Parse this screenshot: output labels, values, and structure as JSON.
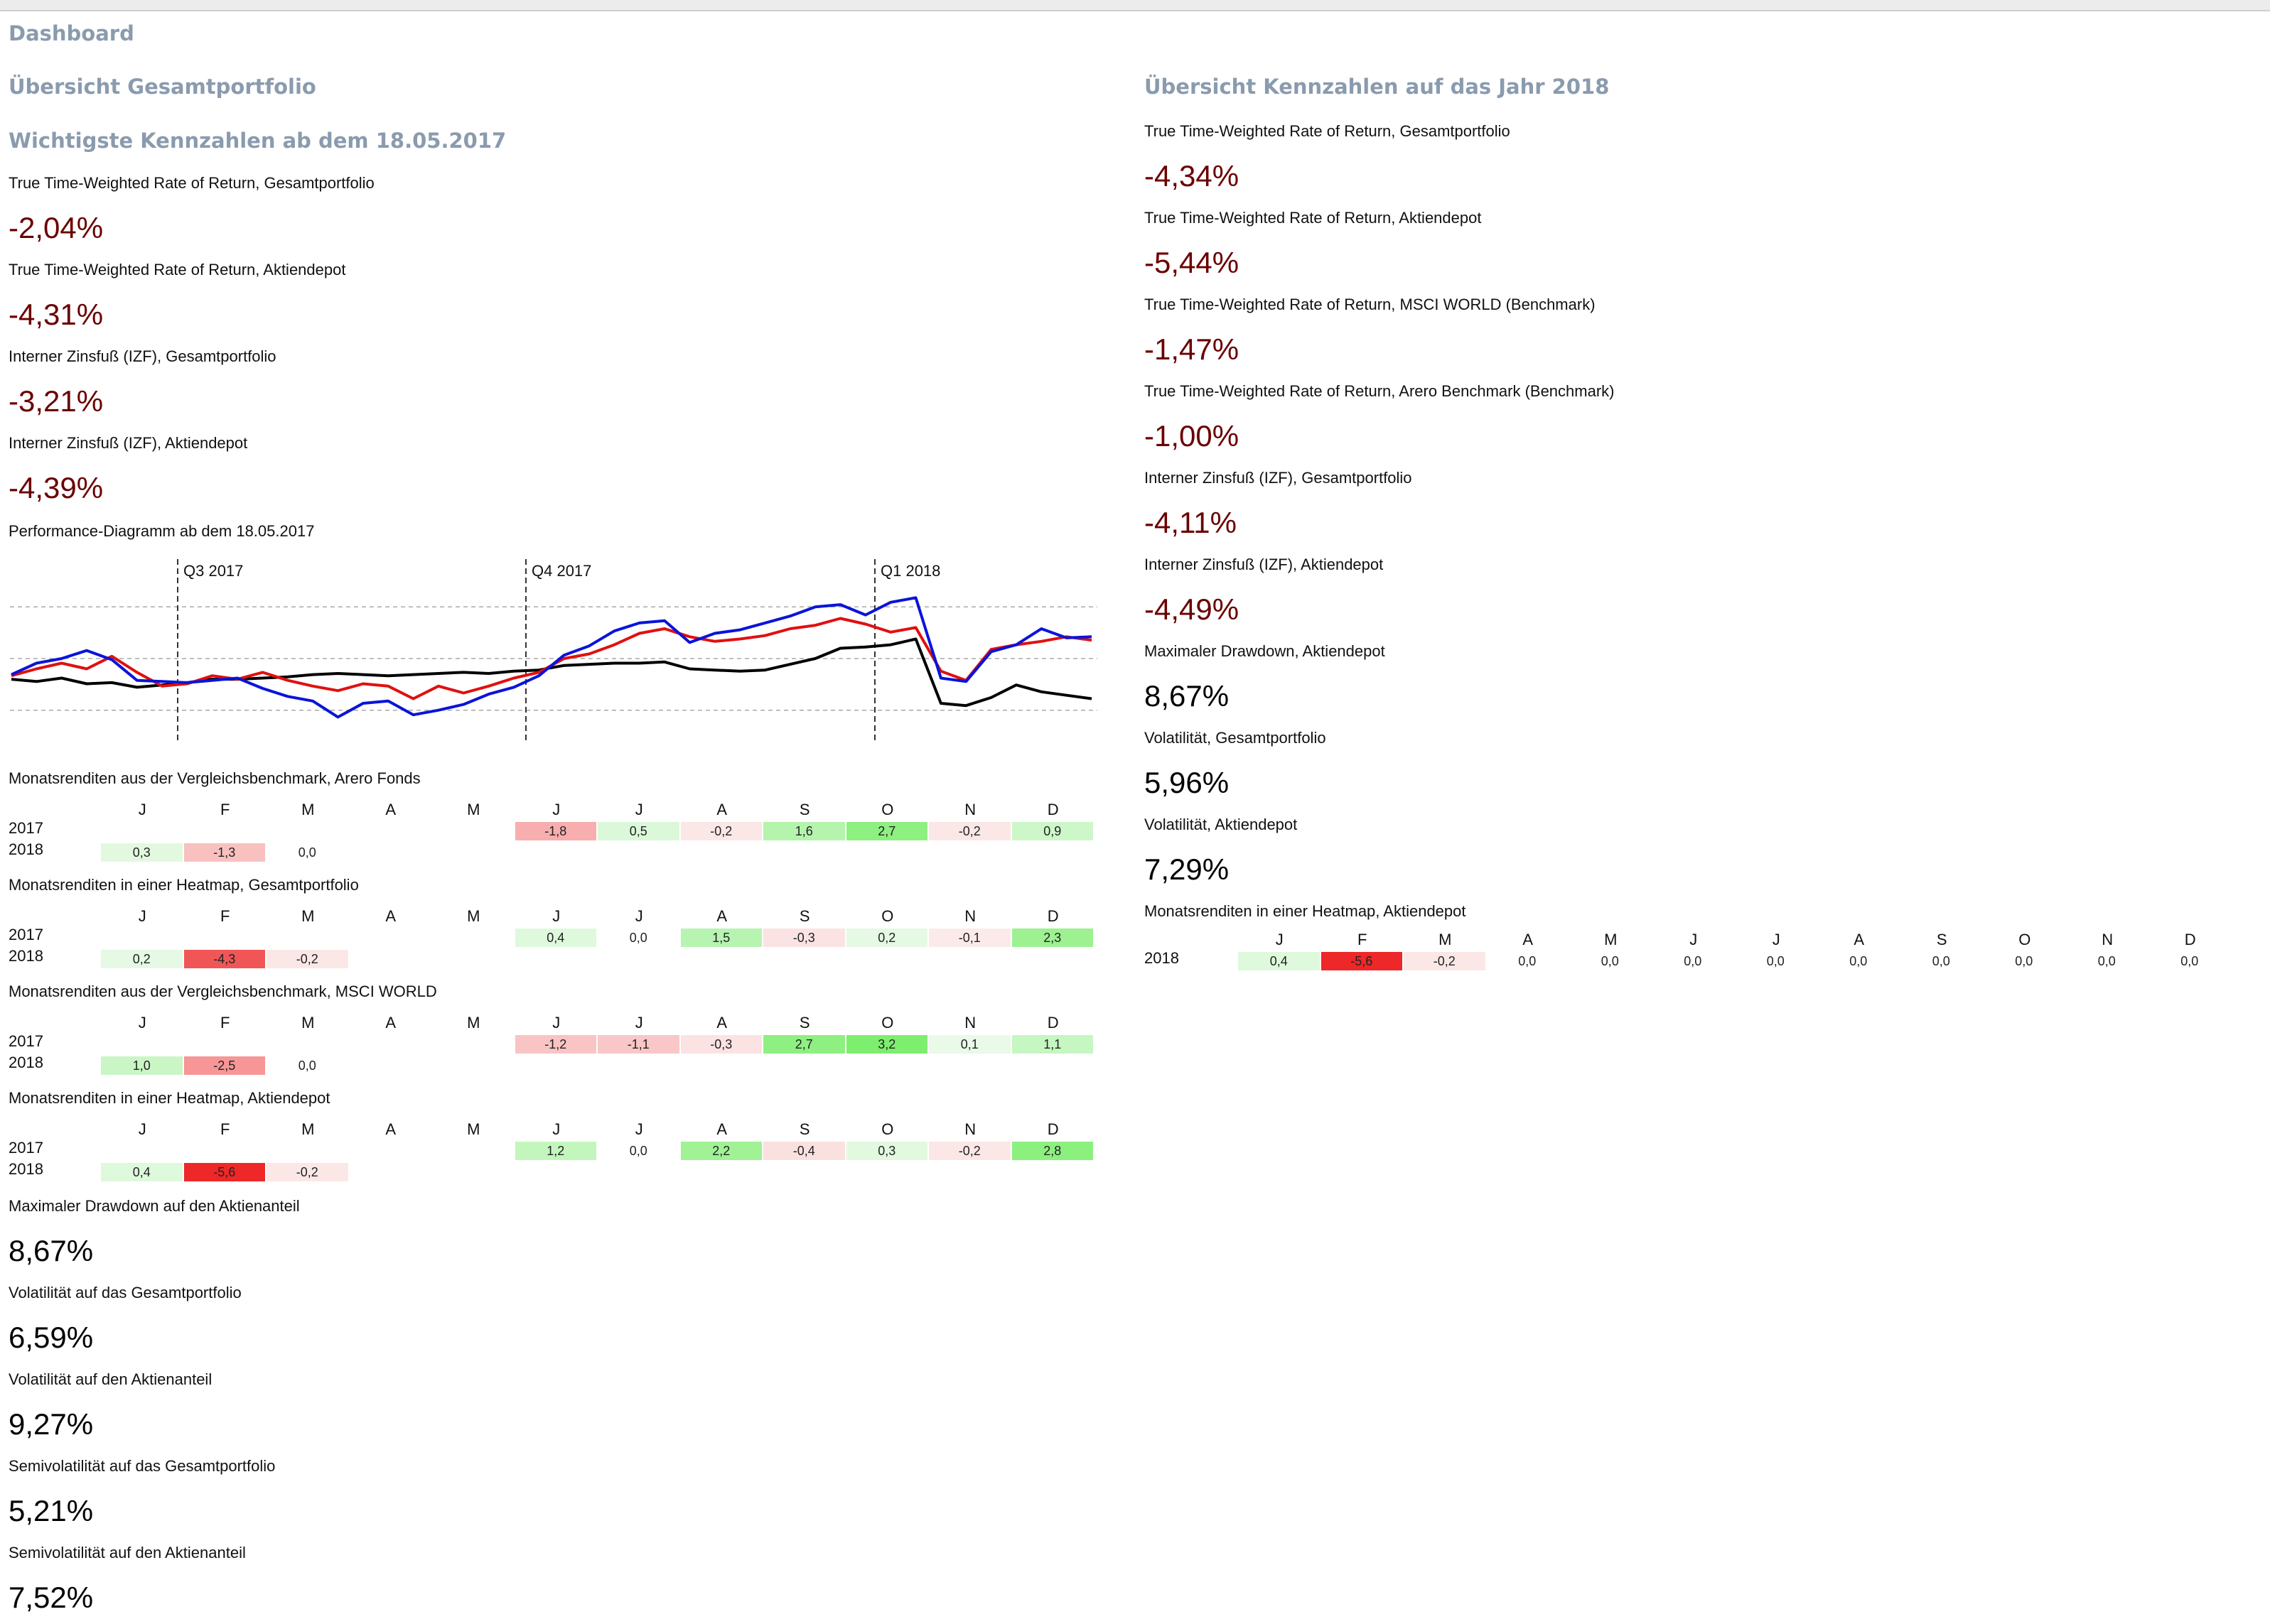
{
  "colors": {
    "heading": "#8a9bae",
    "negative_value": "#6b0000",
    "series_portfolio": "#e01010",
    "series_aktiendepot": "#0a14d8",
    "series_benchmark": "#000000"
  },
  "page_title": "Dashboard",
  "left": {
    "section_title": "Übersicht Gesamtportfolio",
    "kpi_title": "Wichtigste Kennzahlen ab dem 18.05.2017",
    "kpis": [
      {
        "label": "True Time-Weighted Rate of Return, Gesamtportfolio",
        "value": "-2,04%"
      },
      {
        "label": "True Time-Weighted Rate of Return, Aktiendepot",
        "value": "-4,31%"
      },
      {
        "label": "Interner Zinsfuß (IZF), Gesamtportfolio",
        "value": "-3,21%"
      },
      {
        "label": "Interner Zinsfuß (IZF), Aktiendepot",
        "value": "-4,39%"
      }
    ],
    "chart_title": "Performance-Diagramm ab dem 18.05.2017",
    "bottom_kpis": [
      {
        "label": "Maximaler Drawdown auf den Aktienanteil",
        "value": "8,67%"
      },
      {
        "label": "Volatilität auf das Gesamtportfolio",
        "value": "6,59%"
      },
      {
        "label": "Volatilität auf den Aktienanteil",
        "value": "9,27%"
      },
      {
        "label": "Semivolatilität auf das Gesamtportfolio",
        "value": "5,21%"
      },
      {
        "label": "Semivolatilität auf den Aktienanteil",
        "value": "7,52%"
      }
    ]
  },
  "right": {
    "section_title": "Übersicht Kennzahlen auf das Jahr 2018",
    "kpis": [
      {
        "label": "True Time-Weighted Rate of Return, Gesamtportfolio",
        "value": "-4,34%",
        "negative": true
      },
      {
        "label": "True Time-Weighted Rate of Return, Aktiendepot",
        "value": "-5,44%",
        "negative": true
      },
      {
        "label": "True Time-Weighted Rate of Return, MSCI WORLD (Benchmark)",
        "value": "-1,47%",
        "negative": true
      },
      {
        "label": "True Time-Weighted Rate of Return, Arero Benchmark (Benchmark)",
        "value": "-1,00%",
        "negative": true
      },
      {
        "label": "Interner Zinsfuß (IZF), Gesamtportfolio",
        "value": "-4,11%",
        "negative": true
      },
      {
        "label": "Interner Zinsfuß (IZF), Aktiendepot",
        "value": "-4,49%",
        "negative": true
      },
      {
        "label": "Maximaler Drawdown, Aktiendepot",
        "value": "8,67%",
        "negative": false
      },
      {
        "label": "Volatilität, Gesamtportfolio",
        "value": "5,96%",
        "negative": false
      },
      {
        "label": "Volatilität, Aktiendepot",
        "value": "7,29%",
        "negative": false
      }
    ]
  },
  "months": [
    "J",
    "F",
    "M",
    "A",
    "M",
    "J",
    "J",
    "A",
    "S",
    "O",
    "N",
    "D"
  ],
  "heatmaps": [
    {
      "title": "Monatsrenditen aus der Vergleichsbenchmark, Arero Fonds",
      "rows": [
        {
          "year": "2017",
          "values": [
            null,
            null,
            null,
            null,
            null,
            "-1,8",
            "0,5",
            "-0,2",
            "1,6",
            "2,7",
            "-0,2",
            "0,9"
          ]
        },
        {
          "year": "2018",
          "values": [
            "0,3",
            "-1,3",
            "0,0",
            null,
            null,
            null,
            null,
            null,
            null,
            null,
            null,
            null
          ]
        }
      ]
    },
    {
      "title": "Monatsrenditen in einer Heatmap, Gesamtportfolio",
      "rows": [
        {
          "year": "2017",
          "values": [
            null,
            null,
            null,
            null,
            null,
            "0,4",
            "0,0",
            "1,5",
            "-0,3",
            "0,2",
            "-0,1",
            "2,3"
          ]
        },
        {
          "year": "2018",
          "values": [
            "0,2",
            "-4,3",
            "-0,2",
            null,
            null,
            null,
            null,
            null,
            null,
            null,
            null,
            null
          ]
        }
      ]
    },
    {
      "title": "Monatsrenditen aus der Vergleichsbenchmark, MSCI WORLD",
      "rows": [
        {
          "year": "2017",
          "values": [
            null,
            null,
            null,
            null,
            null,
            "-1,2",
            "-1,1",
            "-0,3",
            "2,7",
            "3,2",
            "0,1",
            "1,1"
          ]
        },
        {
          "year": "2018",
          "values": [
            "1,0",
            "-2,5",
            "0,0",
            null,
            null,
            null,
            null,
            null,
            null,
            null,
            null,
            null
          ]
        }
      ]
    },
    {
      "title": "Monatsrenditen in einer Heatmap, Aktiendepot",
      "rows": [
        {
          "year": "2017",
          "values": [
            null,
            null,
            null,
            null,
            null,
            "1,2",
            "0,0",
            "2,2",
            "-0,4",
            "0,3",
            "-0,2",
            "2,8"
          ]
        },
        {
          "year": "2018",
          "values": [
            "0,4",
            "-5,6",
            "-0,2",
            null,
            null,
            null,
            null,
            null,
            null,
            null,
            null,
            null
          ]
        }
      ]
    },
    {
      "title": "Monatsrenditen in einer Heatmap, Aktiendepot",
      "rows": [
        {
          "year": "2018",
          "values": [
            "0,4",
            "-5,6",
            "-0,2",
            "0,0",
            "0,0",
            "0,0",
            "0,0",
            "0,0",
            "0,0",
            "0,0",
            "0,0",
            "0,0"
          ]
        }
      ]
    }
  ],
  "chart_data": {
    "type": "line",
    "title": "Performance-Diagramm ab dem 18.05.2017",
    "quarter_labels": [
      "Q3 2017",
      "Q4 2017",
      "Q1 2018"
    ],
    "grid": "dashed horizontal reference lines",
    "x_range": [
      "2017-05-18",
      "2018-03-31"
    ],
    "series": [
      {
        "values": [
          0.0,
          0.6,
          1.1,
          0.6,
          1.7,
          0.3,
          -0.9,
          -0.7,
          0.0,
          -0.3,
          0.3,
          -0.4,
          -0.9,
          -1.3,
          -0.7,
          -0.9,
          -2.0,
          -0.9,
          -1.5,
          -0.9,
          -0.2,
          0.3,
          1.5,
          1.9,
          2.7,
          3.7,
          4.1,
          3.4,
          3.0,
          3.2,
          3.5,
          4.1,
          4.4,
          5.0,
          4.5,
          3.8,
          4.2,
          0.4,
          -0.4,
          2.3,
          2.7,
          3.0,
          3.4,
          3.1
        ]
      },
      {
        "values": [
          0.1,
          1.1,
          1.5,
          2.2,
          1.4,
          -0.4,
          -0.5,
          -0.6,
          -0.4,
          -0.2,
          -1.1,
          -1.8,
          -2.2,
          -3.6,
          -2.4,
          -2.2,
          -3.4,
          -3.0,
          -2.5,
          -1.6,
          -1.0,
          0.0,
          1.8,
          2.6,
          3.9,
          4.6,
          4.8,
          2.9,
          3.7,
          4.0,
          4.6,
          5.2,
          6.0,
          6.2,
          5.3,
          6.4,
          6.8,
          -0.2,
          -0.5,
          2.1,
          2.7,
          4.1,
          3.3,
          3.4
        ]
      },
      {
        "values": [
          -0.3,
          -0.5,
          -0.2,
          -0.7,
          -0.6,
          -1.0,
          -0.8,
          -0.6,
          -0.3,
          -0.3,
          -0.2,
          -0.1,
          0.1,
          0.2,
          0.1,
          0.0,
          0.1,
          0.2,
          0.3,
          0.2,
          0.4,
          0.5,
          0.9,
          1.0,
          1.1,
          1.1,
          1.2,
          0.6,
          0.5,
          0.4,
          0.5,
          1.0,
          1.5,
          2.4,
          2.5,
          2.7,
          3.2,
          -2.4,
          -2.6,
          -1.9,
          -0.8,
          -1.4,
          -1.7,
          -2.0
        ]
      }
    ]
  }
}
